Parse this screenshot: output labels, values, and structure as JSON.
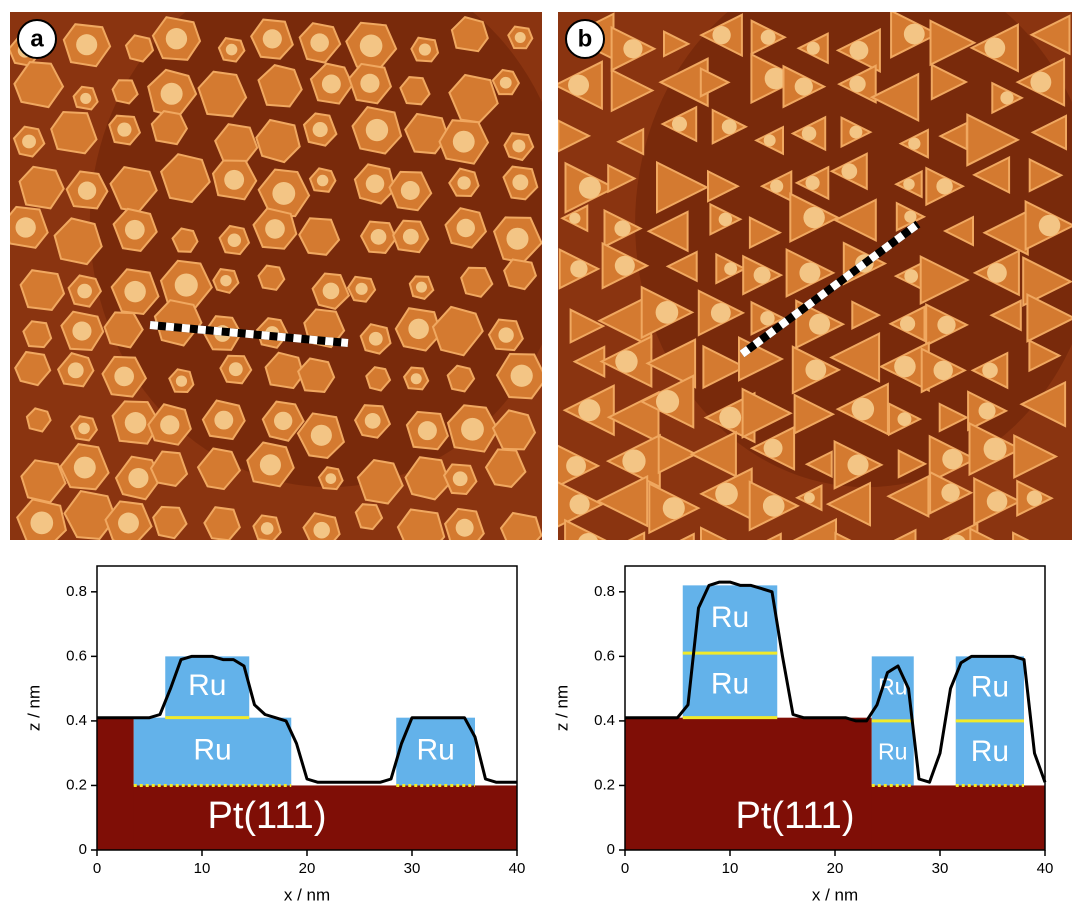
{
  "chart_data": [
    {
      "type": "line",
      "panel": "a",
      "xlabel": "x / nm",
      "ylabel": "z / nm",
      "x": [
        0,
        1,
        2,
        3,
        4,
        5,
        6,
        7,
        8,
        9,
        10,
        11,
        12,
        13,
        14,
        15,
        16,
        17,
        18,
        19,
        20,
        21,
        22,
        23,
        24,
        25,
        26,
        27,
        28,
        29,
        30,
        31,
        32,
        33,
        34,
        35,
        36,
        37,
        38,
        39,
        40
      ],
      "series": [
        {
          "color": "#000000",
          "values": [
            0.41,
            0.41,
            0.41,
            0.41,
            0.41,
            0.41,
            0.42,
            0.5,
            0.59,
            0.6,
            0.6,
            0.6,
            0.59,
            0.59,
            0.57,
            0.45,
            0.42,
            0.41,
            0.4,
            0.33,
            0.22,
            0.21,
            0.21,
            0.21,
            0.21,
            0.21,
            0.21,
            0.21,
            0.22,
            0.33,
            0.41,
            0.41,
            0.41,
            0.41,
            0.41,
            0.41,
            0.35,
            0.22,
            0.21,
            0.21,
            0.21
          ]
        }
      ],
      "blocks": [
        {
          "x": [
            0,
            40
          ],
          "z": [
            0,
            0.2
          ],
          "color": "#7f0e06",
          "label": "Pt(111)"
        },
        {
          "x": [
            0,
            3.5
          ],
          "z": [
            0,
            0.41
          ],
          "color": "#7f0e06"
        },
        {
          "x": [
            3.5,
            18.5
          ],
          "z": [
            0.2,
            0.41
          ],
          "color": "#63b2ea",
          "label": "Ru"
        },
        {
          "x": [
            6.5,
            14.5
          ],
          "z": [
            0.41,
            0.6
          ],
          "color": "#63b2ea",
          "label": "Ru"
        },
        {
          "x": [
            28.5,
            36
          ],
          "z": [
            0.2,
            0.41
          ],
          "color": "#63b2ea",
          "label": "Ru"
        }
      ],
      "xlim": [
        0,
        40
      ],
      "ylim": [
        0,
        0.88
      ],
      "xticks": [
        0,
        10,
        20,
        30,
        40
      ],
      "yticks": [
        0,
        0.2,
        0.4,
        0.6,
        0.8
      ]
    },
    {
      "type": "line",
      "panel": "b",
      "xlabel": "x / nm",
      "ylabel": "z / nm",
      "x": [
        0,
        1,
        2,
        3,
        4,
        5,
        6,
        7,
        8,
        9,
        10,
        11,
        12,
        13,
        14,
        15,
        16,
        17,
        18,
        19,
        20,
        21,
        22,
        23,
        24,
        25,
        26,
        27,
        28,
        29,
        30,
        31,
        32,
        33,
        34,
        35,
        36,
        37,
        38,
        39,
        40
      ],
      "series": [
        {
          "color": "#000000",
          "values": [
            0.41,
            0.41,
            0.41,
            0.41,
            0.41,
            0.41,
            0.45,
            0.75,
            0.82,
            0.83,
            0.83,
            0.82,
            0.82,
            0.81,
            0.8,
            0.6,
            0.42,
            0.41,
            0.41,
            0.41,
            0.41,
            0.41,
            0.4,
            0.4,
            0.45,
            0.55,
            0.57,
            0.5,
            0.22,
            0.21,
            0.3,
            0.5,
            0.58,
            0.6,
            0.6,
            0.6,
            0.6,
            0.6,
            0.59,
            0.3,
            0.21
          ]
        }
      ],
      "blocks": [
        {
          "x": [
            0,
            40
          ],
          "z": [
            0,
            0.2
          ],
          "color": "#7f0e06",
          "label": "Pt(111)"
        },
        {
          "x": [
            0,
            23.5
          ],
          "z": [
            0,
            0.41
          ],
          "color": "#7f0e06"
        },
        {
          "x": [
            5.5,
            14.5
          ],
          "z": [
            0.41,
            0.61
          ],
          "color": "#63b2ea",
          "label": "Ru"
        },
        {
          "x": [
            5.5,
            14.5
          ],
          "z": [
            0.61,
            0.82
          ],
          "color": "#63b2ea",
          "label": "Ru"
        },
        {
          "x": [
            23.5,
            27.5
          ],
          "z": [
            0.2,
            0.4
          ],
          "color": "#63b2ea",
          "label": "Ru"
        },
        {
          "x": [
            23.5,
            27.5
          ],
          "z": [
            0.4,
            0.6
          ],
          "color": "#63b2ea",
          "label": "Ru"
        },
        {
          "x": [
            31.5,
            38
          ],
          "z": [
            0.2,
            0.4
          ],
          "color": "#63b2ea",
          "label": "Ru"
        },
        {
          "x": [
            31.5,
            38
          ],
          "z": [
            0.4,
            0.6
          ],
          "color": "#63b2ea",
          "label": "Ru"
        }
      ],
      "xlim": [
        0,
        40
      ],
      "ylim": [
        0,
        0.88
      ],
      "xticks": [
        0,
        10,
        20,
        30,
        40
      ],
      "yticks": [
        0,
        0.2,
        0.4,
        0.6,
        0.8
      ]
    }
  ]
}
